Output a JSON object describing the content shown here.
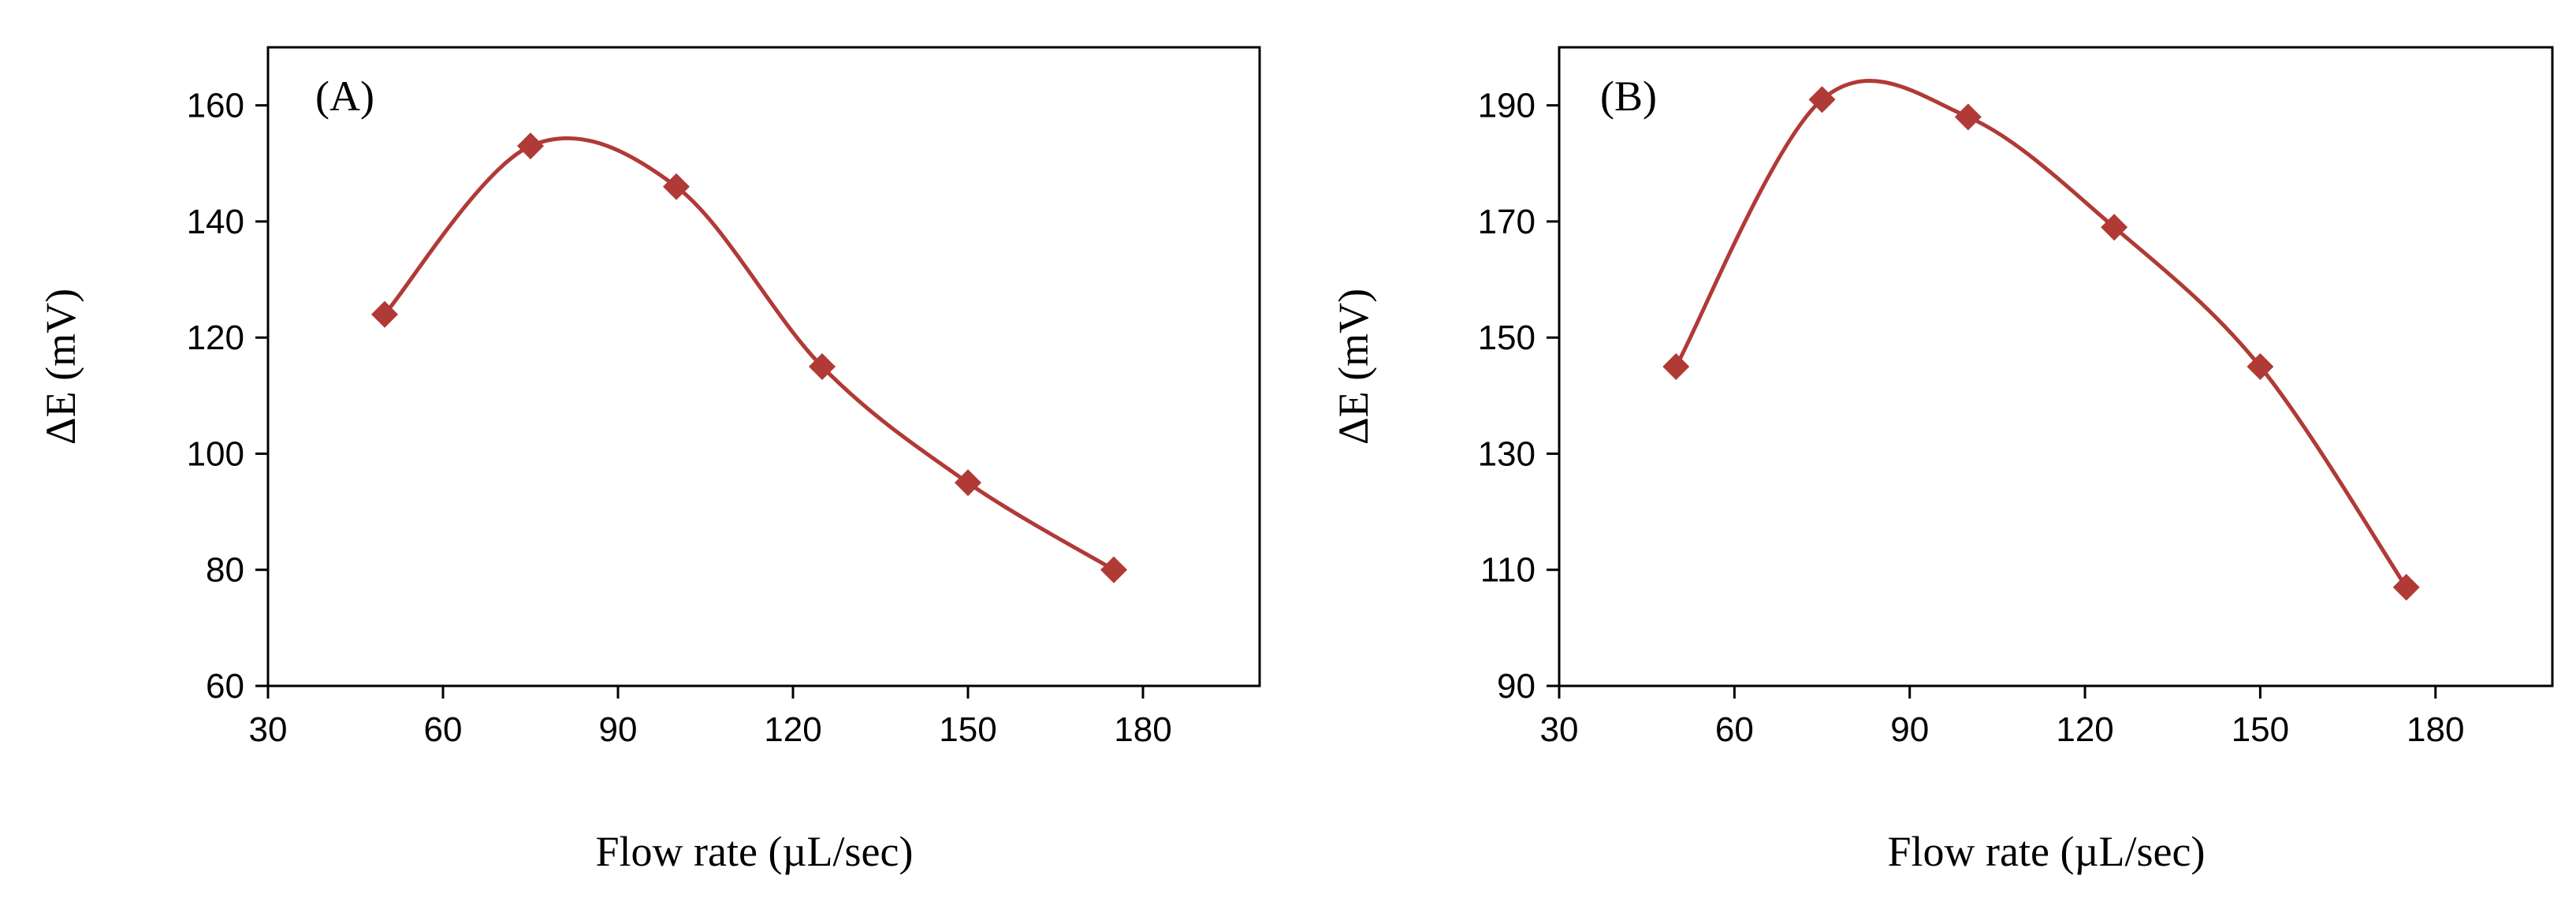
{
  "chart_data": [
    {
      "type": "line",
      "panel_label": "(A)",
      "xlabel": "Flow rate (µL/sec)",
      "ylabel": "ΔE (mV)",
      "xlim": [
        30,
        200
      ],
      "ylim": [
        60,
        170
      ],
      "xticks": [
        30,
        60,
        90,
        120,
        150,
        180
      ],
      "yticks": [
        60,
        80,
        100,
        120,
        140,
        160
      ],
      "grid": false,
      "series": [
        {
          "name": "ΔE",
          "marker": "diamond",
          "smooth": true,
          "x": [
            50,
            75,
            100,
            125,
            150,
            175
          ],
          "y": [
            124,
            153,
            146,
            115,
            95,
            80
          ]
        }
      ]
    },
    {
      "type": "line",
      "panel_label": "(B)",
      "xlabel": "Flow rate (µL/sec)",
      "ylabel": "ΔE (mV)",
      "xlim": [
        30,
        200
      ],
      "ylim": [
        90,
        200
      ],
      "xticks": [
        30,
        60,
        90,
        120,
        150,
        180
      ],
      "yticks": [
        90,
        110,
        130,
        150,
        170,
        190
      ],
      "grid": false,
      "series": [
        {
          "name": "ΔE",
          "marker": "diamond",
          "smooth": true,
          "x": [
            50,
            75,
            100,
            125,
            150,
            175
          ],
          "y": [
            145,
            191,
            188,
            169,
            145,
            107
          ]
        }
      ]
    }
  ],
  "colors": {
    "series": "#b03a36",
    "axis": "#000000"
  }
}
